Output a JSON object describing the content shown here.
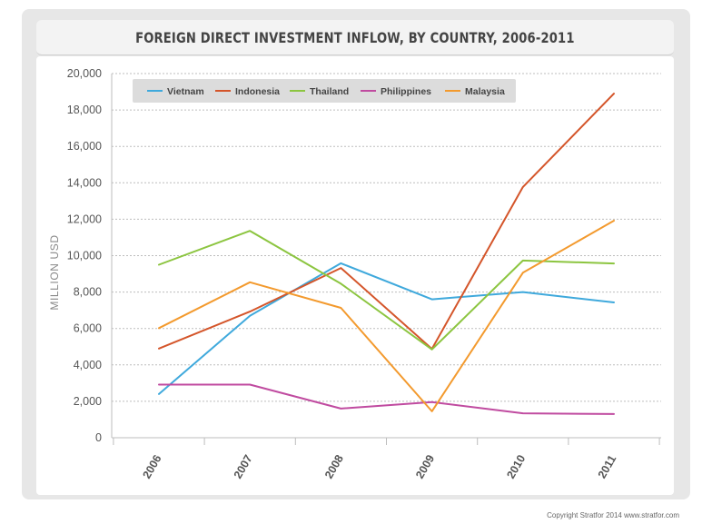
{
  "header": {
    "title": "FOREIGN DIRECT INVESTMENT INFLOW, BY COUNTRY, 2006-2011"
  },
  "footer": {
    "copyright": "Copyright Stratfor 2014   www.stratfor.com"
  },
  "chart_data": {
    "type": "line",
    "title": "FOREIGN DIRECT INVESTMENT INFLOW, BY COUNTRY, 2006-2011",
    "xlabel": "",
    "ylabel": "MILLION USD",
    "x": [
      "2006",
      "2007",
      "2008",
      "2009",
      "2010",
      "2011"
    ],
    "ylim": [
      0,
      20000
    ],
    "yticks": [
      0,
      2000,
      4000,
      6000,
      8000,
      10000,
      12000,
      14000,
      16000,
      18000,
      20000
    ],
    "ytick_labels": [
      "0",
      "2,000",
      "4,000",
      "6,000",
      "8,000",
      "10,000",
      "12,000",
      "14,000",
      "16,000",
      "18,000",
      "20,000"
    ],
    "grid": "horizontal dashed",
    "legend_position": "top-left inside plot",
    "series": [
      {
        "name": "Vietnam",
        "color": "#3fa9dc",
        "values": [
          2400,
          6700,
          9580,
          7600,
          8000,
          7430
        ]
      },
      {
        "name": "Indonesia",
        "color": "#d4552a",
        "values": [
          4900,
          6930,
          9320,
          4880,
          13770,
          18900
        ]
      },
      {
        "name": "Thailand",
        "color": "#8cc540",
        "values": [
          9500,
          11360,
          8460,
          4850,
          9730,
          9570
        ]
      },
      {
        "name": "Philippines",
        "color": "#c04ba0",
        "values": [
          2920,
          2920,
          1600,
          1960,
          1340,
          1300
        ]
      },
      {
        "name": "Malaysia",
        "color": "#f39a2e",
        "values": [
          6020,
          8540,
          7130,
          1450,
          9060,
          11920
        ]
      }
    ]
  }
}
